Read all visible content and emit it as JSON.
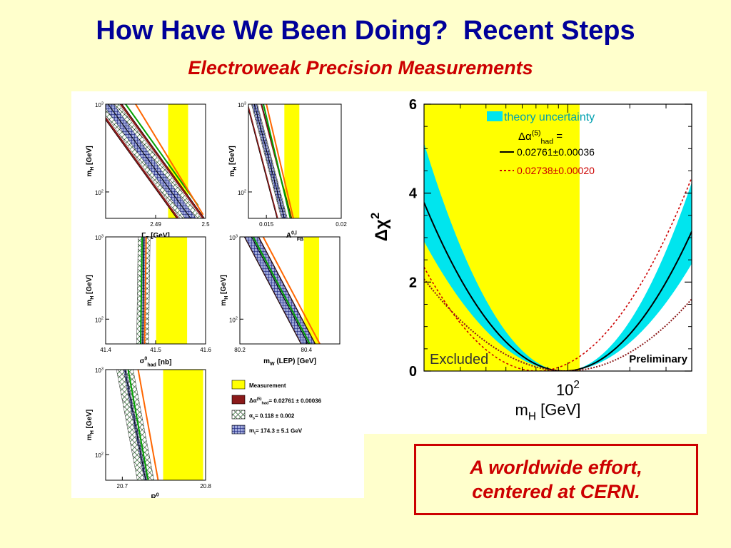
{
  "slide": {
    "title": "How Have We Been Doing?  Recent Steps",
    "subtitle": "Electroweak Precision Measurements",
    "callout": {
      "line1": "A worldwide effort,",
      "line2": "centered at CERN."
    }
  },
  "colors": {
    "background": "#ffffcc",
    "title": "#000099",
    "accent_red": "#cc0000",
    "measurement_band": "#ffff00",
    "theory_band": "#00e5ee",
    "dalpha_band": "#8b1a1a",
    "alphas_band": "#2e7d32",
    "mt_band": "#1a237e"
  },
  "chart_data": [
    {
      "id": "gammaZ",
      "type": "area",
      "xlabel": "Γ",
      "xlabel_sub": "Z",
      "xunit": "[GeV]",
      "ylabel": "m",
      "ylabel_sub": "H",
      "yunit": "[GeV]",
      "xlim": [
        2.48,
        2.5
      ],
      "x_ticks": [
        "2.49",
        "2.5"
      ],
      "x_tick_values": [
        2.49,
        2.5
      ],
      "y_scale": "log",
      "ylim": [
        50,
        1000
      ],
      "y_ticks": [
        {
          "base": "10",
          "exp": "3",
          "value": 1000
        },
        {
          "base": "10",
          "exp": "2",
          "value": 100
        }
      ],
      "measurement": [
        2.4925,
        2.4965
      ],
      "measurement_clip": 2.4985,
      "center": [
        [
          2.4805,
          1000
        ],
        [
          2.497,
          50
        ]
      ],
      "width_dalpha": 0.0028,
      "width_alphas": 0.0021,
      "width_mt": 0.0011,
      "green": [
        [
          2.484,
          1000
        ],
        [
          2.4985,
          70
        ]
      ],
      "orange": [
        [
          2.486,
          1000
        ],
        [
          2.4995,
          55
        ]
      ]
    },
    {
      "id": "afb",
      "type": "area",
      "xlabel": "A",
      "xlabel_sup": "0,l",
      "xlabel_sub": "FB",
      "ylabel": "m",
      "ylabel_sub": "H",
      "yunit": "[GeV]",
      "xlim": [
        0.0138,
        0.02
      ],
      "x_ticks": [
        "0.015",
        "0.02"
      ],
      "x_tick_values": [
        0.015,
        0.02
      ],
      "y_scale": "log",
      "ylim": [
        50,
        1000
      ],
      "y_ticks": [
        {
          "base": "10",
          "exp": "3",
          "value": 1000
        },
        {
          "base": "10",
          "exp": "2",
          "value": 100
        }
      ],
      "measurement": [
        0.0162,
        0.0172
      ],
      "measurement_clip": 0.0172,
      "center": [
        [
          0.0142,
          1000
        ],
        [
          0.0162,
          50
        ]
      ],
      "width_dalpha": 0.0005,
      "width_alphas": 0.0002,
      "width_mt": 0.00015,
      "green": [
        [
          0.0148,
          1000
        ],
        [
          0.0166,
          50
        ]
      ],
      "orange": [
        [
          0.015,
          1000
        ],
        [
          0.0168,
          50
        ]
      ]
    },
    {
      "id": "sigmahad",
      "type": "area",
      "xlabel": "σ",
      "xlabel_sup": "0",
      "xlabel_sub": "had",
      "xunit": "[nb]",
      "ylabel": "m",
      "ylabel_sub": "H",
      "yunit": "[GeV]",
      "xlim": [
        41.4,
        41.6
      ],
      "x_ticks": [
        "41.4",
        "41.5",
        "41.6"
      ],
      "x_tick_values": [
        41.4,
        41.5,
        41.6
      ],
      "y_scale": "log",
      "ylim": [
        50,
        1000
      ],
      "y_ticks": [
        {
          "base": "10",
          "exp": "3",
          "value": 1000
        },
        {
          "base": "10",
          "exp": "2",
          "value": 100
        }
      ],
      "measurement": [
        41.501,
        41.563
      ],
      "measurement_clip": 41.6,
      "center": [
        [
          41.477,
          1000
        ],
        [
          41.474,
          50
        ]
      ],
      "width_dalpha": 0.006,
      "width_alphas": 0.012,
      "width_mt": 0.004,
      "green": [
        [
          41.473,
          1000
        ],
        [
          41.47,
          50
        ]
      ],
      "orange": [
        [
          41.481,
          1000
        ],
        [
          41.478,
          50
        ]
      ]
    },
    {
      "id": "mw",
      "type": "area",
      "xlabel": "m",
      "xlabel_sub": "W",
      "xunit": "(LEP)  [GeV]",
      "ylabel": "m",
      "ylabel_sub": "H",
      "yunit": "[GeV]",
      "xlim": [
        80.2,
        80.5
      ],
      "x_ticks": [
        "80.2",
        "80.4"
      ],
      "x_tick_values": [
        80.2,
        80.4
      ],
      "y_scale": "log",
      "ylim": [
        50,
        1000
      ],
      "y_ticks": [
        {
          "base": "10",
          "exp": "3",
          "value": 1000
        },
        {
          "base": "10",
          "exp": "2",
          "value": 100
        }
      ],
      "measurement": [
        80.392,
        80.438
      ],
      "measurement_clip": 80.5,
      "center": [
        [
          80.235,
          1000
        ],
        [
          80.405,
          50
        ]
      ],
      "width_dalpha": 0.022,
      "width_alphas": 0.006,
      "width_mt": 0.02,
      "green": [
        [
          80.24,
          1000
        ],
        [
          80.41,
          50
        ]
      ],
      "orange": [
        [
          80.27,
          1000
        ],
        [
          80.44,
          50
        ]
      ]
    },
    {
      "id": "rl",
      "type": "area",
      "xlabel": "R",
      "xlabel_sup": "0",
      "xlabel_sub": "l",
      "ylabel": "m",
      "ylabel_sub": "H",
      "yunit": "[GeV]",
      "xlim": [
        20.68,
        20.8
      ],
      "x_ticks": [
        "20.7",
        "20.8"
      ],
      "x_tick_values": [
        20.7,
        20.8
      ],
      "y_scale": "log",
      "ylim": [
        50,
        1000
      ],
      "y_ticks": [
        {
          "base": "10",
          "exp": "3",
          "value": 1000
        },
        {
          "base": "10",
          "exp": "2",
          "value": 100
        }
      ],
      "measurement": [
        20.749,
        20.797
      ],
      "measurement_clip": 20.8,
      "center": [
        [
          20.703,
          1000
        ],
        [
          20.728,
          50
        ]
      ],
      "width_dalpha": 0.0022,
      "width_alphas": 0.01,
      "width_mt": 0.0016,
      "green": [
        [
          20.707,
          1000
        ],
        [
          20.731,
          50
        ]
      ],
      "orange": [
        [
          20.719,
          1000
        ],
        [
          20.743,
          50
        ]
      ]
    },
    {
      "id": "blueband",
      "type": "line",
      "xlabel": "m",
      "xlabel_sub": "H",
      "xunit": "[GeV]",
      "ylabel": "Δχ",
      "ylabel_sup": "2",
      "x_scale": "log",
      "xlim": [
        20,
        400
      ],
      "x_ticks": [
        {
          "base": "10",
          "exp": "2",
          "value": 100
        }
      ],
      "ylim": [
        0,
        6
      ],
      "y_ticks": [
        0,
        2,
        4,
        6
      ],
      "excluded_below": 114,
      "excluded_label": "Excluded",
      "preliminary_label": "Preliminary",
      "theory_label": "theory uncertainty",
      "legend_header": "Δα",
      "legend_header_sup": "(5)",
      "legend_header_sub": "had",
      "legend_header_tail": " =",
      "series": [
        {
          "name": "0.02761±0.00036",
          "color": "#000000",
          "dash": false,
          "min_mh": 96,
          "width_log10": 0.35
        },
        {
          "name": "0.02738±0.00020",
          "color": "#cc0000",
          "dash": true,
          "min_mh": 71,
          "width_log10": 0.36
        }
      ],
      "theory_band_half_width": 0.14,
      "brown_edge": {
        "color": "#8b1a1a",
        "min_mh": 98,
        "width_log10": 0.48
      }
    }
  ],
  "legend_small": {
    "items": [
      {
        "key": "measurement",
        "label": "Measurement"
      },
      {
        "key": "dalpha",
        "label": "Δα",
        "label_sup": "(5)",
        "label_sub": "had",
        "label_tail": "= 0.02761 ± 0.00036"
      },
      {
        "key": "alphas",
        "label": "α",
        "label_sub": "s",
        "label_tail": "= 0.118 ± 0.002"
      },
      {
        "key": "mt",
        "label": "m",
        "label_sub": "t",
        "label_tail": "= 174.3 ± 5.1 GeV"
      }
    ]
  }
}
